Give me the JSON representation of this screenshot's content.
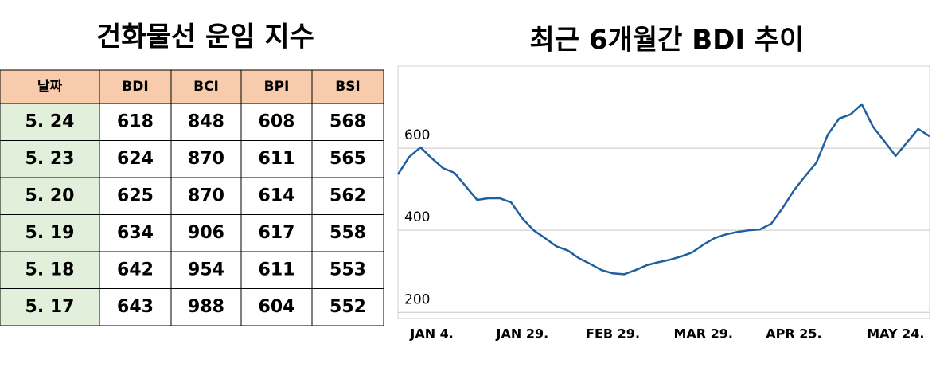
{
  "table": {
    "title": "건화물선 운임 지수",
    "header": [
      "날짜",
      "BDI",
      "BCI",
      "BPI",
      "BSI"
    ],
    "rows": [
      [
        "5. 24",
        618,
        848,
        608,
        568
      ],
      [
        "5. 23",
        624,
        870,
        611,
        565
      ],
      [
        "5. 20",
        625,
        870,
        614,
        562
      ],
      [
        "5. 19",
        634,
        906,
        617,
        558
      ],
      [
        "5. 18",
        642,
        954,
        611,
        553
      ],
      [
        "5. 17",
        643,
        988,
        604,
        552
      ]
    ]
  },
  "chart_data": {
    "type": "line",
    "title": "최근 6개월간 BDI 추이",
    "categories": [
      null,
      null,
      null,
      "JAN 4.",
      null,
      null,
      null,
      null,
      null,
      null,
      null,
      "JAN 29.",
      null,
      null,
      null,
      null,
      null,
      null,
      null,
      "FEB 29.",
      null,
      null,
      null,
      null,
      null,
      null,
      null,
      "MAR 29.",
      null,
      null,
      null,
      null,
      null,
      null,
      null,
      "APR 25.",
      null,
      null,
      null,
      null,
      null,
      null,
      null,
      null,
      "MAY 24.",
      null,
      null,
      null
    ],
    "series": [
      {
        "name": "BDI",
        "color": "#1f5fa0",
        "values": [
          536,
          579,
          602,
          575,
          551,
          540,
          507,
          474,
          478,
          478,
          468,
          429,
          400,
          381,
          361,
          351,
          332,
          318,
          303,
          295,
          293,
          303,
          315,
          322,
          328,
          336,
          346,
          365,
          381,
          390,
          396,
          400,
          402,
          416,
          454,
          497,
          532,
          565,
          633,
          672,
          682,
          707,
          652,
          617,
          581,
          614,
          647,
          629
        ]
      }
    ],
    "ylim": [
      185,
      800
    ],
    "yticks": [
      200,
      400,
      600
    ],
    "grid": true
  }
}
